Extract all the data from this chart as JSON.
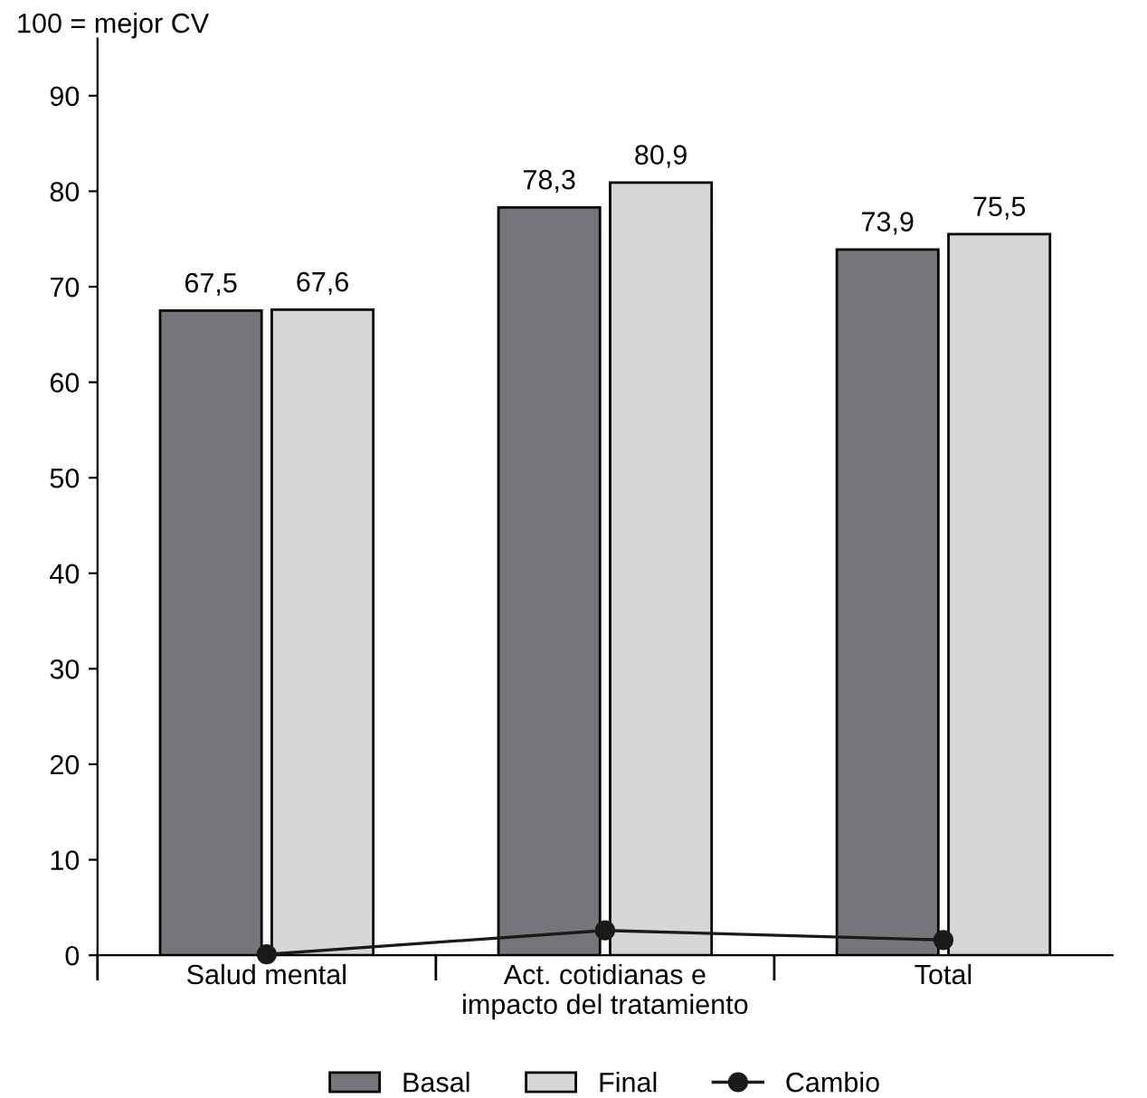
{
  "chart_data": {
    "type": "bar",
    "ylabel": "100 = mejor CV",
    "categories": [
      "Salud mental",
      "Act. cotidianas e\nimpacto del tratamiento",
      "Total"
    ],
    "series": [
      {
        "name": "Basal",
        "color": "#76767a",
        "values": [
          67.5,
          78.3,
          73.9
        ],
        "value_labels": [
          "67,5",
          "78,3",
          "73,9"
        ]
      },
      {
        "name": "Final",
        "color": "#d5d6d8",
        "values": [
          67.6,
          80.9,
          75.5
        ],
        "value_labels": [
          "67,6",
          "80,9",
          "75,5"
        ]
      },
      {
        "name": "Cambio",
        "type": "line",
        "color": "#1a1a1a",
        "values": [
          0.1,
          2.6,
          1.6
        ],
        "marker": "circle"
      }
    ],
    "ylim": [
      0,
      96
    ],
    "yticks": [
      0,
      10,
      20,
      30,
      40,
      50,
      60,
      70,
      80,
      90
    ],
    "grid": false,
    "legend": "bottom"
  }
}
